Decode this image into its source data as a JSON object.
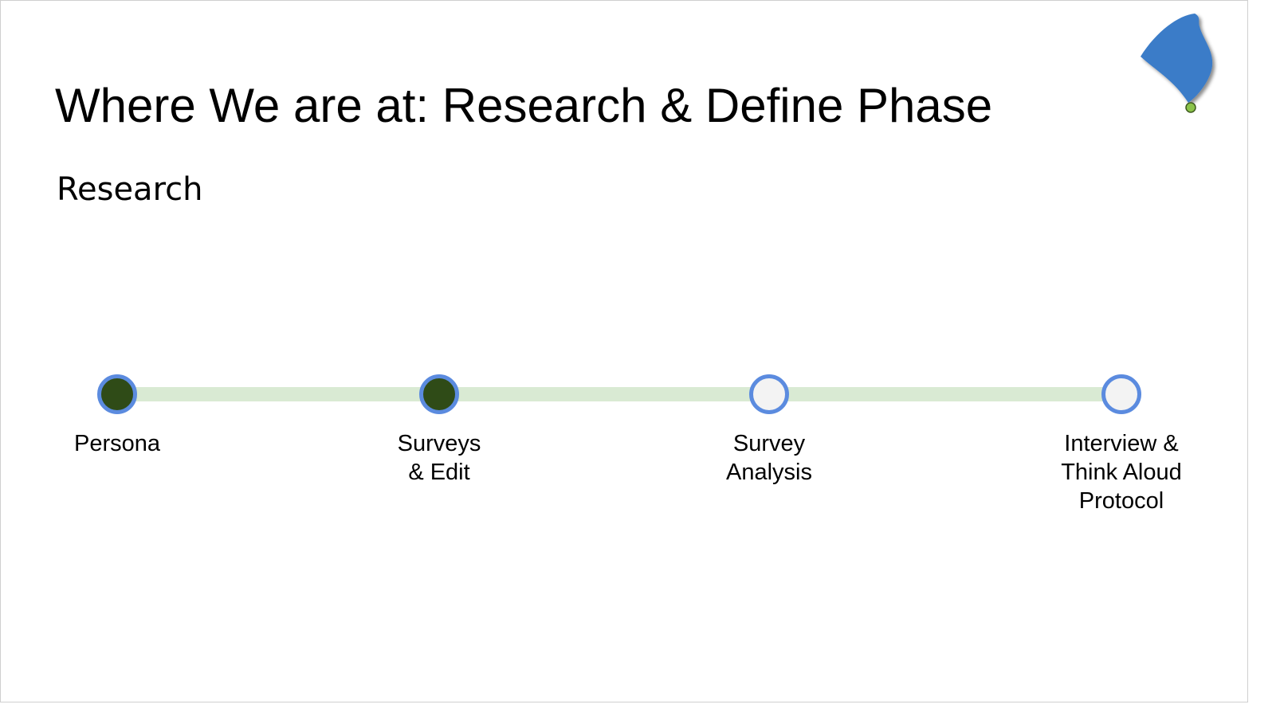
{
  "slide": {
    "title": "Where We are at: Research & Define Phase",
    "subtitle": "Research"
  },
  "timeline": {
    "steps": [
      {
        "label": "Persona",
        "status": "done"
      },
      {
        "label": "Surveys\n& Edit",
        "status": "done"
      },
      {
        "label": "Survey\nAnalysis",
        "status": "todo"
      },
      {
        "label": "Interview &\nThink Aloud\nProtocol",
        "status": "todo"
      }
    ]
  },
  "colors": {
    "node_border": "#5b8bdf",
    "node_done": "#2f4b17",
    "node_todo": "#f3f3f3",
    "bar": "#d9ead3",
    "logo_fill": "#3a7bc8",
    "logo_dot": "#8bc34a"
  },
  "icons": {
    "logo": "blue-drop-logo-icon"
  }
}
